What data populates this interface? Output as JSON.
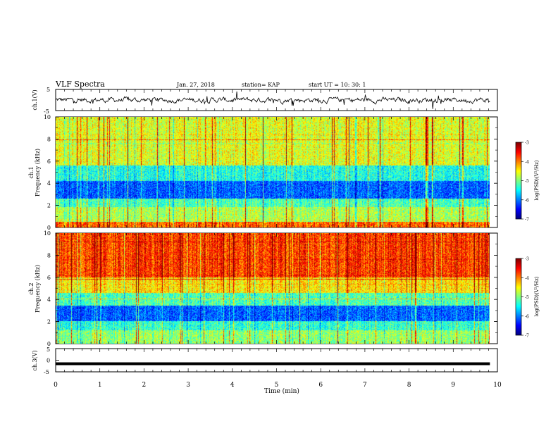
{
  "header": {
    "title": "VLF Spectra",
    "date": "Jan. 27, 2018",
    "station": "station= KAP",
    "start": "start  UT =   10: 30: 1"
  },
  "chart_data": [
    {
      "type": "line",
      "id": "ch1-waveform",
      "ylabel": "ch.1(V)",
      "ylim": [
        -5,
        5
      ],
      "yticks": [
        "5",
        "-5"
      ],
      "xlim": [
        0,
        10
      ],
      "x_end": 9.83,
      "noise_amplitude_v": 1.4
    },
    {
      "type": "heatmap",
      "id": "ch1-spectrogram",
      "ylabel": "ch.1\nFrequency (kHz)",
      "ylim": [
        0,
        10
      ],
      "yticks": [
        "0",
        "2",
        "4",
        "6",
        "8",
        "10"
      ],
      "xlim": [
        0,
        10
      ],
      "x_end": 9.83,
      "colorbar": {
        "label": "log(PSD)(V²/Hz)",
        "ticks": [
          "-3",
          "-4",
          "-5",
          "-6",
          "-7"
        ],
        "range": [
          -7,
          -3
        ]
      },
      "bands": [
        {
          "f": [
            0,
            0.5
          ],
          "level": 0.78
        },
        {
          "f": [
            0.5,
            1.8
          ],
          "level": 0.55
        },
        {
          "f": [
            1.8,
            2.6
          ],
          "level": 0.45
        },
        {
          "f": [
            2.6,
            4.2
          ],
          "level": 0.22
        },
        {
          "f": [
            4.2,
            5.6
          ],
          "level": 0.4
        },
        {
          "f": [
            5.6,
            10
          ],
          "level": 0.6
        }
      ]
    },
    {
      "type": "heatmap",
      "id": "ch2-spectrogram",
      "ylabel": "ch.2\nFrequency (kHz)",
      "ylim": [
        0,
        10
      ],
      "yticks": [
        "0",
        "2",
        "4",
        "6",
        "8",
        "10"
      ],
      "xlim": [
        0,
        10
      ],
      "x_end": 9.83,
      "colorbar": {
        "label": "log(PSD)(V²/Hz)",
        "ticks": [
          "-3",
          "-4",
          "-5",
          "-6",
          "-7"
        ],
        "range": [
          -7,
          -3
        ]
      },
      "bands": [
        {
          "f": [
            0,
            1.2
          ],
          "level": 0.52
        },
        {
          "f": [
            1.2,
            2.0
          ],
          "level": 0.42
        },
        {
          "f": [
            2.0,
            3.4
          ],
          "level": 0.22
        },
        {
          "f": [
            3.4,
            4.6
          ],
          "level": 0.45
        },
        {
          "f": [
            4.6,
            6.0
          ],
          "level": 0.65
        },
        {
          "f": [
            6.0,
            10
          ],
          "level": 0.82
        }
      ]
    },
    {
      "type": "line",
      "id": "ch3-waveform",
      "ylabel": "ch.3(V)",
      "ylim": [
        -5,
        5
      ],
      "yticks": [
        "5",
        "0",
        "-5"
      ],
      "xlim": [
        0,
        10
      ],
      "x_end": 9.83,
      "constant_value_v": -1.5,
      "xlabel": "Time (min)",
      "xticks": [
        "0",
        "1",
        "2",
        "3",
        "4",
        "5",
        "6",
        "7",
        "8",
        "9",
        "10"
      ]
    }
  ]
}
